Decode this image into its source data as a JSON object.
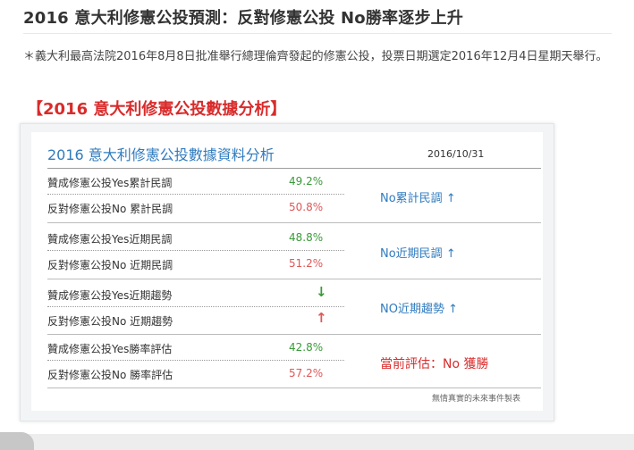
{
  "article": {
    "title": "2016 意大利修憲公投預測：反對修憲公投 No勝率逐步上升",
    "intro": "＊義大利最高法院2016年8月8日批准舉行總理倫齊發起的修憲公投，投票日期選定2016年12月4日星期天舉行。",
    "section_heading": "【2016 意大利修憲公投數據分析】"
  },
  "panel": {
    "title": "2016 意大利修憲公投數據資料分析",
    "date": "2016/10/31",
    "rows": [
      {
        "label": "贊成修憲公投Yes累計民調",
        "value": "49.2%"
      },
      {
        "label": "反對修憲公投No 累計民調",
        "value": "50.8%"
      },
      {
        "label": "贊成修憲公投Yes近期民調",
        "value": "48.8%"
      },
      {
        "label": "反對修憲公投No 近期民調",
        "value": "51.2%"
      },
      {
        "label": "贊成修憲公投Yes近期趨勢",
        "value": "↓"
      },
      {
        "label": "反對修憲公投No 近期趨勢",
        "value": "↑"
      },
      {
        "label": "贊成修憲公投Yes勝率評估",
        "value": "42.8%"
      },
      {
        "label": "反對修憲公投No 勝率評估",
        "value": "57.2%"
      }
    ],
    "summaries": [
      {
        "text": "No累計民調",
        "arrow": "↑"
      },
      {
        "text": "No近期民調",
        "arrow": "↑"
      },
      {
        "text": "NO近期趨勢",
        "arrow": "↑"
      }
    ],
    "verdict": "當前評估：No 獲勝",
    "footnote": "無情真實的未來事件製表"
  },
  "colors": {
    "accent_blue": "#2f7bbf",
    "accent_red": "#d92b2b",
    "positive_green": "#3a9a3a",
    "negative_red": "#e05757"
  }
}
